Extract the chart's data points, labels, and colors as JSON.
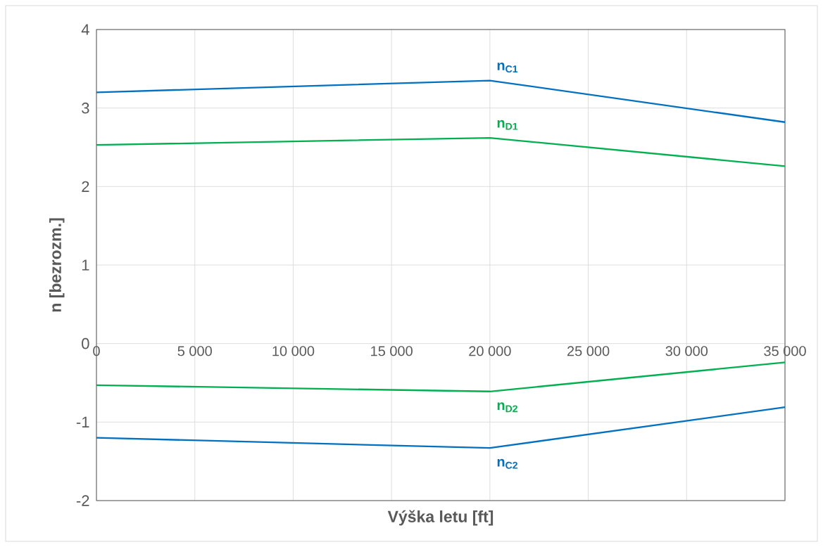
{
  "chart_data": {
    "type": "line",
    "xlabel": "Výška letu [ft]",
    "ylabel": "n [bezrozm.]",
    "x": [
      0,
      20000,
      35000
    ],
    "series": [
      {
        "name": "n$_{C1}$",
        "color": "#0070c0",
        "values": [
          3.2,
          3.35,
          2.82
        ]
      },
      {
        "name": "n$_{D1}$",
        "color": "#00b050",
        "values": [
          2.53,
          2.62,
          2.26
        ]
      },
      {
        "name": "n$_{D2}$",
        "color": "#00b050",
        "values": [
          -0.53,
          -0.61,
          -0.24
        ]
      },
      {
        "name": "n$_{C2}$",
        "color": "#0070c0",
        "values": [
          -1.2,
          -1.33,
          -0.81
        ]
      }
    ],
    "xlim": [
      0,
      35000
    ],
    "xticks": [
      0,
      {
        "value": 5000,
        "label": "5 000"
      },
      {
        "value": 10000,
        "label": "10 000"
      },
      {
        "value": 15000,
        "label": "15 000"
      },
      {
        "value": 20000,
        "label": "20 000"
      },
      {
        "value": 25000,
        "label": "25 000"
      },
      {
        "value": 30000,
        "label": "30 000"
      },
      {
        "value": 35000,
        "label": "35 000"
      }
    ],
    "ylim": [
      -2,
      4
    ],
    "yticks": [
      -2,
      -1,
      0,
      1,
      2,
      3,
      4
    ],
    "grid": true,
    "marker": "none"
  }
}
